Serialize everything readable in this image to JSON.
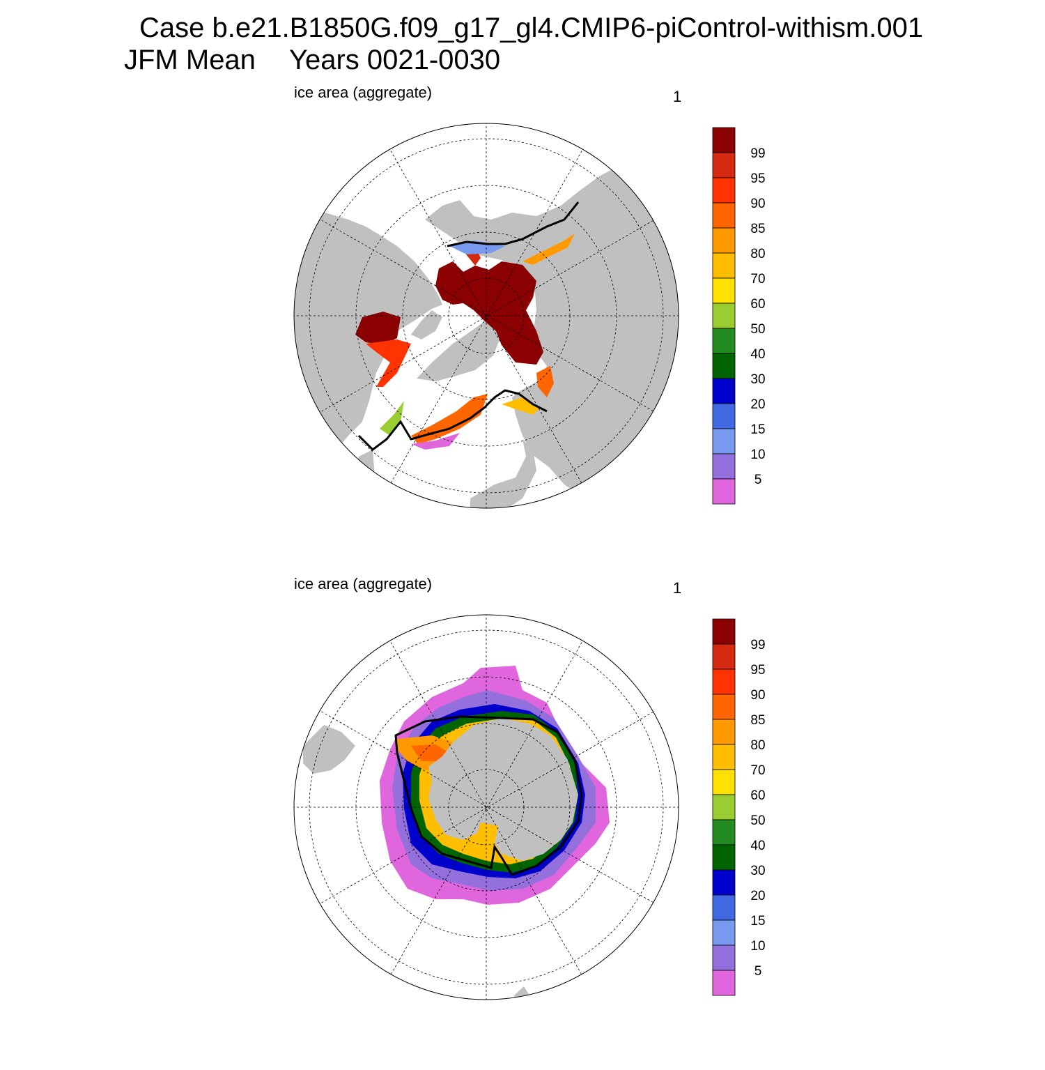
{
  "header": {
    "case_line": "Case b.e21.B1850G.f09_g17_gl4.CMIP6-piControl-withism.001",
    "season": "JFM Mean",
    "years": "Years 0021-0030"
  },
  "panels": [
    {
      "hemisphere": "north",
      "variable_label": "ice area  (aggregate)",
      "level_label": "1"
    },
    {
      "hemisphere": "south",
      "variable_label": "ice area  (aggregate)",
      "level_label": "1"
    }
  ],
  "colorbar": {
    "levels": [
      "99",
      "95",
      "90",
      "85",
      "80",
      "70",
      "60",
      "50",
      "40",
      "30",
      "20",
      "15",
      "10",
      "5"
    ],
    "colors": [
      "#8b0000",
      "#d42a0f",
      "#ff3300",
      "#ff6600",
      "#ff9900",
      "#ffbf00",
      "#ffe100",
      "#9acd32",
      "#228b22",
      "#006400",
      "#0000cd",
      "#4169e1",
      "#7799ee",
      "#9370db",
      "#e066dd"
    ]
  },
  "map_style": {
    "land_color": "#c0c0c0",
    "ocean_color": "#ffffff",
    "ice_edge_color": "#000000"
  }
}
